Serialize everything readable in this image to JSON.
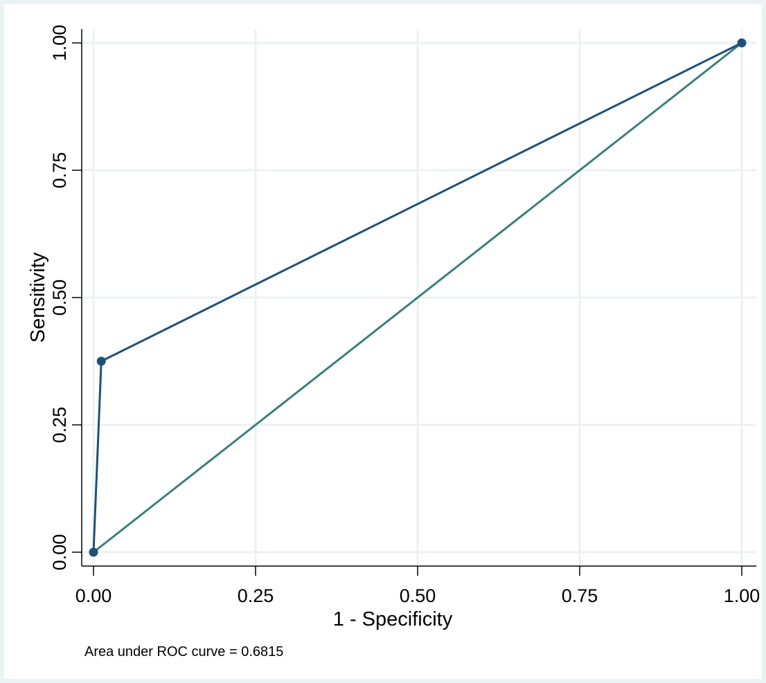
{
  "chart_data": {
    "type": "line",
    "xlabel": "1 - Specificity",
    "ylabel": "Sensitivity",
    "xlim": [
      0,
      1
    ],
    "ylim": [
      0,
      1
    ],
    "x_ticks": [
      "0.00",
      "0.25",
      "0.50",
      "0.75",
      "1.00"
    ],
    "y_ticks": [
      "0.00",
      "0.25",
      "0.50",
      "0.75",
      "1.00"
    ],
    "grid": true,
    "series": [
      {
        "role": "roc-curve",
        "color": "#1f5078",
        "markers": true,
        "points": [
          {
            "x": 0.0,
            "y": 0.0
          },
          {
            "x": 0.012,
            "y": 0.375
          },
          {
            "x": 1.0,
            "y": 1.0
          }
        ]
      },
      {
        "role": "reference-line",
        "color": "#3a8079",
        "markers": false,
        "points": [
          {
            "x": 0.0,
            "y": 0.0
          },
          {
            "x": 1.0,
            "y": 1.0
          }
        ]
      }
    ],
    "note": "Area under ROC curve = 0.6815"
  },
  "colors": {
    "outer_background": "#eaf2f3",
    "plot_background": "#ffffff",
    "grid": "#eaf2f3",
    "axis": "#000000"
  }
}
